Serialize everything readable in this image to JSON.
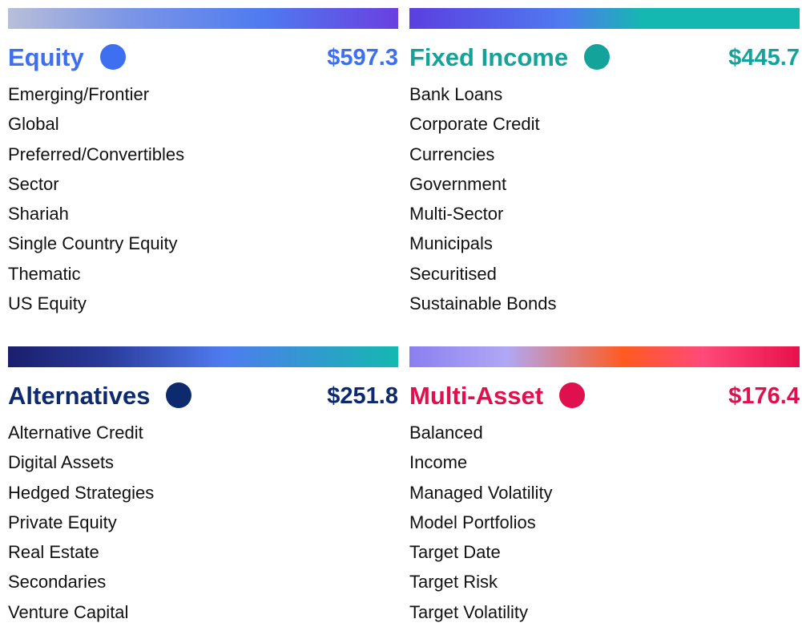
{
  "panels": [
    {
      "title": "Equity",
      "amount": "$597.3",
      "color": "#3d6ff0",
      "items": [
        "Emerging/Frontier",
        "Global",
        "Preferred/Convertibles",
        "Sector",
        "Shariah",
        "Single Country Equity",
        "Thematic",
        "US Equity"
      ]
    },
    {
      "title": "Fixed Income",
      "amount": "$445.7",
      "color": "#14a39a",
      "items": [
        "Bank Loans",
        "Corporate Credit",
        "Currencies",
        "Government",
        "Multi-Sector",
        "Municipals",
        "Securitised",
        "Sustainable Bonds"
      ]
    },
    {
      "title": "Alternatives",
      "amount": "$251.8",
      "color": "#0d2a6e",
      "items": [
        "Alternative Credit",
        "Digital Assets",
        "Hedged Strategies",
        "Private Equity",
        "Real Estate",
        "Secondaries",
        "Venture Capital"
      ]
    },
    {
      "title": "Multi-Asset",
      "amount": "$176.4",
      "color": "#e0104e",
      "items": [
        "Balanced",
        "Income",
        "Managed Volatility",
        "Model Portfolios",
        "Target Date",
        "Target Risk",
        "Target Volatility"
      ]
    }
  ]
}
